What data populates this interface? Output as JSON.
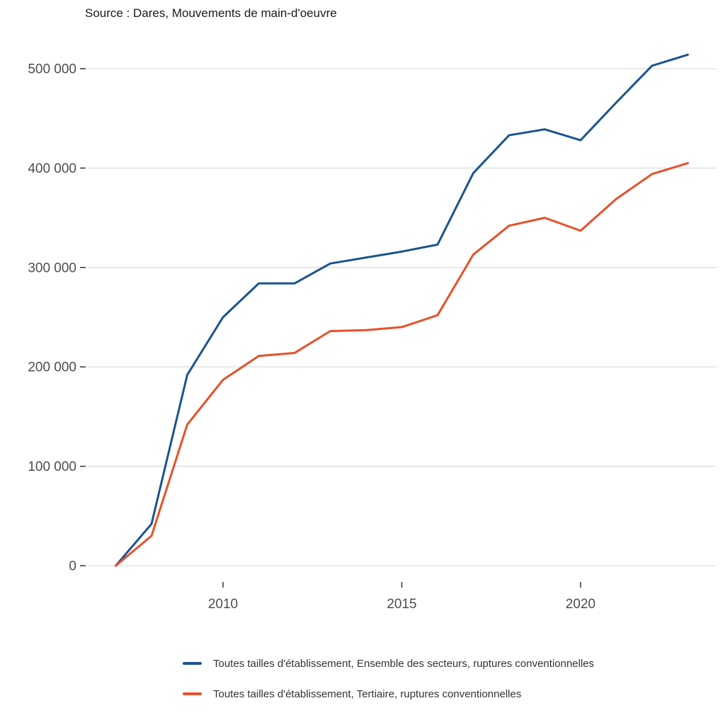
{
  "chart_data": {
    "type": "line",
    "title": "Source : Dares, Mouvements de main-d'oeuvre",
    "xlabel": "",
    "ylabel": "",
    "x": [
      2007,
      2008,
      2009,
      2010,
      2011,
      2012,
      2013,
      2014,
      2015,
      2016,
      2017,
      2018,
      2019,
      2020,
      2021,
      2022,
      2023
    ],
    "series": [
      {
        "name": "Toutes tailles d'établissement, Ensemble des secteurs, ruptures conventionnelles",
        "color": "#1a5490",
        "values": [
          0,
          42000,
          192000,
          250000,
          284000,
          284000,
          304000,
          310000,
          316000,
          323000,
          395000,
          433000,
          439000,
          428000,
          466000,
          503000,
          514000
        ]
      },
      {
        "name": "Toutes tailles d'établissement, Tertiaire, ruptures conventionnelles",
        "color": "#e8502a",
        "values": [
          0,
          30000,
          142000,
          187000,
          211000,
          214000,
          236000,
          237000,
          240000,
          252000,
          313000,
          342000,
          350000,
          337000,
          369000,
          394000,
          405000
        ]
      }
    ],
    "xlim": [
      2007,
      2023
    ],
    "ylim": [
      0,
      520000
    ],
    "x_ticks": [
      {
        "value": 2010,
        "label": "2010"
      },
      {
        "value": 2015,
        "label": "2015"
      },
      {
        "value": 2020,
        "label": "2020"
      }
    ],
    "y_ticks": [
      {
        "value": 0,
        "label": "0"
      },
      {
        "value": 100000,
        "label": "100 000"
      },
      {
        "value": 200000,
        "label": "200 000"
      },
      {
        "value": 300000,
        "label": "300 000"
      },
      {
        "value": 400000,
        "label": "400 000"
      },
      {
        "value": 500000,
        "label": "500 000"
      }
    ],
    "grid": {
      "horizontal": true,
      "vertical": false
    },
    "legend_position": "bottom",
    "colors": {
      "grid": "#e3e3e3",
      "tick": "#333333",
      "tick_text": "#4d4d4d",
      "title_text": "#1a1a1a",
      "legend_text": "#333333",
      "background": "#ffffff"
    }
  }
}
